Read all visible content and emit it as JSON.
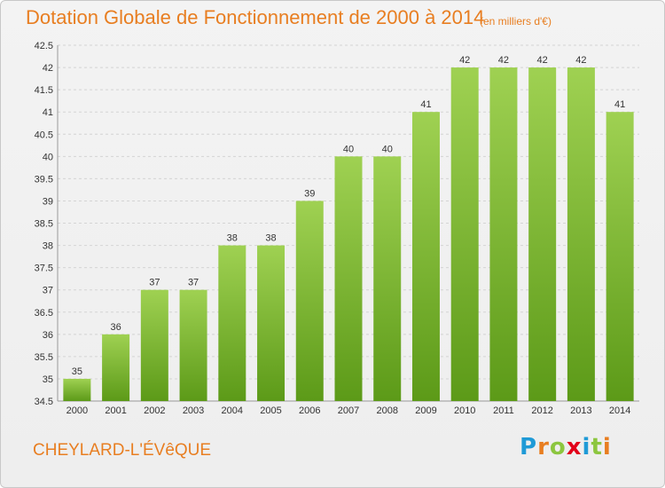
{
  "header": {
    "title": "Dotation Globale de Fonctionnement de 2000 à 2014",
    "unit": "(en milliers d'€)"
  },
  "footer": {
    "commune": "CHEYLARD-L'ÉVêQUE",
    "brand_letters": [
      {
        "char": "P",
        "color": "#1f9ad6"
      },
      {
        "char": "r",
        "color": "#e87e21"
      },
      {
        "char": "o",
        "color": "#8cc63f"
      },
      {
        "char": "x",
        "color": "#e2001a"
      },
      {
        "char": "i",
        "color": "#1f9ad6"
      },
      {
        "char": "t",
        "color": "#8cc63f"
      },
      {
        "char": "i",
        "color": "#e87e21"
      }
    ]
  },
  "colors": {
    "accent": "#e87e21",
    "bar_top": "#9fd152",
    "bar_bottom": "#5c9a18",
    "grid": "#d4d4d4",
    "axis_text": "#333333"
  },
  "chart_data": {
    "type": "bar",
    "categories": [
      "2000",
      "2001",
      "2002",
      "2003",
      "2004",
      "2005",
      "2006",
      "2007",
      "2008",
      "2009",
      "2010",
      "2011",
      "2012",
      "2013",
      "2014"
    ],
    "values": [
      35,
      36,
      37,
      37,
      38,
      38,
      39,
      40,
      40,
      41,
      42,
      42,
      42,
      42,
      41
    ],
    "title": "Dotation Globale de Fonctionnement de 2000 à 2014",
    "ylim": [
      34.5,
      42.5
    ],
    "yticks": [
      34.5,
      35,
      35.5,
      36,
      36.5,
      37,
      37.5,
      38,
      38.5,
      39,
      39.5,
      40,
      40.5,
      41,
      41.5,
      42,
      42.5
    ],
    "grid": "horizontal dashed"
  }
}
